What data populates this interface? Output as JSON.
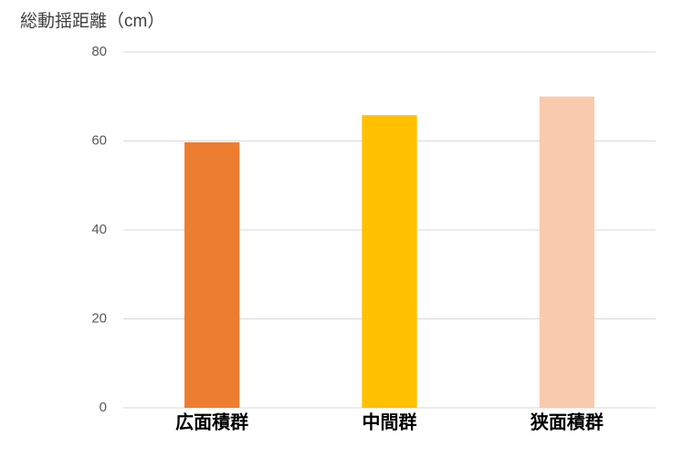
{
  "chart_data": {
    "type": "bar",
    "title": "総動揺距離（cm）",
    "categories": [
      "広面積群",
      "中間群",
      "狭面積群"
    ],
    "values": [
      59.7,
      65.8,
      70
    ],
    "colors": [
      "#ed7d31",
      "#ffc000",
      "#f8cbad"
    ],
    "ylim": [
      0,
      80
    ],
    "yticks": [
      0,
      20,
      40,
      60,
      80
    ],
    "grid": true
  }
}
